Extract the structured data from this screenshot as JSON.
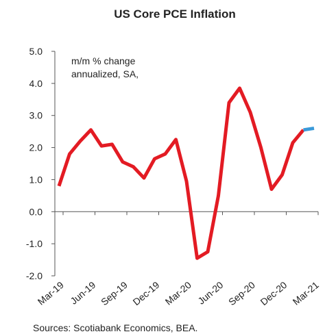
{
  "chart_data": {
    "type": "line",
    "title": "US Core PCE Inflation",
    "annotations": [
      "m/m % change",
      "annualized, SA,"
    ],
    "source": "Sources: Scotiabank Economics, BEA.",
    "categories": [
      "Mar-19",
      null,
      null,
      "Jun-19",
      null,
      null,
      "Sep-19",
      null,
      null,
      "Dec-19",
      null,
      null,
      "Mar-20",
      null,
      null,
      "Jun-20",
      null,
      null,
      "Sep-20",
      null,
      null,
      "Dec-20",
      null,
      null,
      "Mar-21"
    ],
    "series": [
      {
        "color": "#e31b23",
        "values": [
          0.8,
          1.8,
          2.2,
          2.55,
          2.05,
          2.1,
          1.55,
          1.4,
          1.05,
          1.65,
          1.8,
          2.25,
          0.95,
          -1.45,
          -1.25,
          0.5,
          3.4,
          3.85,
          3.1,
          2.0,
          0.7,
          1.15,
          2.15,
          2.55,
          null
        ]
      },
      {
        "color": "#3a9ad9",
        "values": [
          null,
          null,
          null,
          null,
          null,
          null,
          null,
          null,
          null,
          null,
          null,
          null,
          null,
          null,
          null,
          null,
          null,
          null,
          null,
          null,
          null,
          null,
          null,
          2.55,
          2.6
        ]
      }
    ],
    "ylim": [
      -2,
      5
    ],
    "yticks": [
      {
        "value": 5,
        "label": "5.0"
      },
      {
        "value": 4,
        "label": "4.0"
      },
      {
        "value": 3,
        "label": "3.0"
      },
      {
        "value": 2,
        "label": "2.0"
      },
      {
        "value": 1,
        "label": "1.0"
      },
      {
        "value": 0,
        "label": "0.0"
      },
      {
        "value": -1,
        "label": "-1.0"
      },
      {
        "value": -2,
        "label": "-2.0"
      }
    ]
  }
}
